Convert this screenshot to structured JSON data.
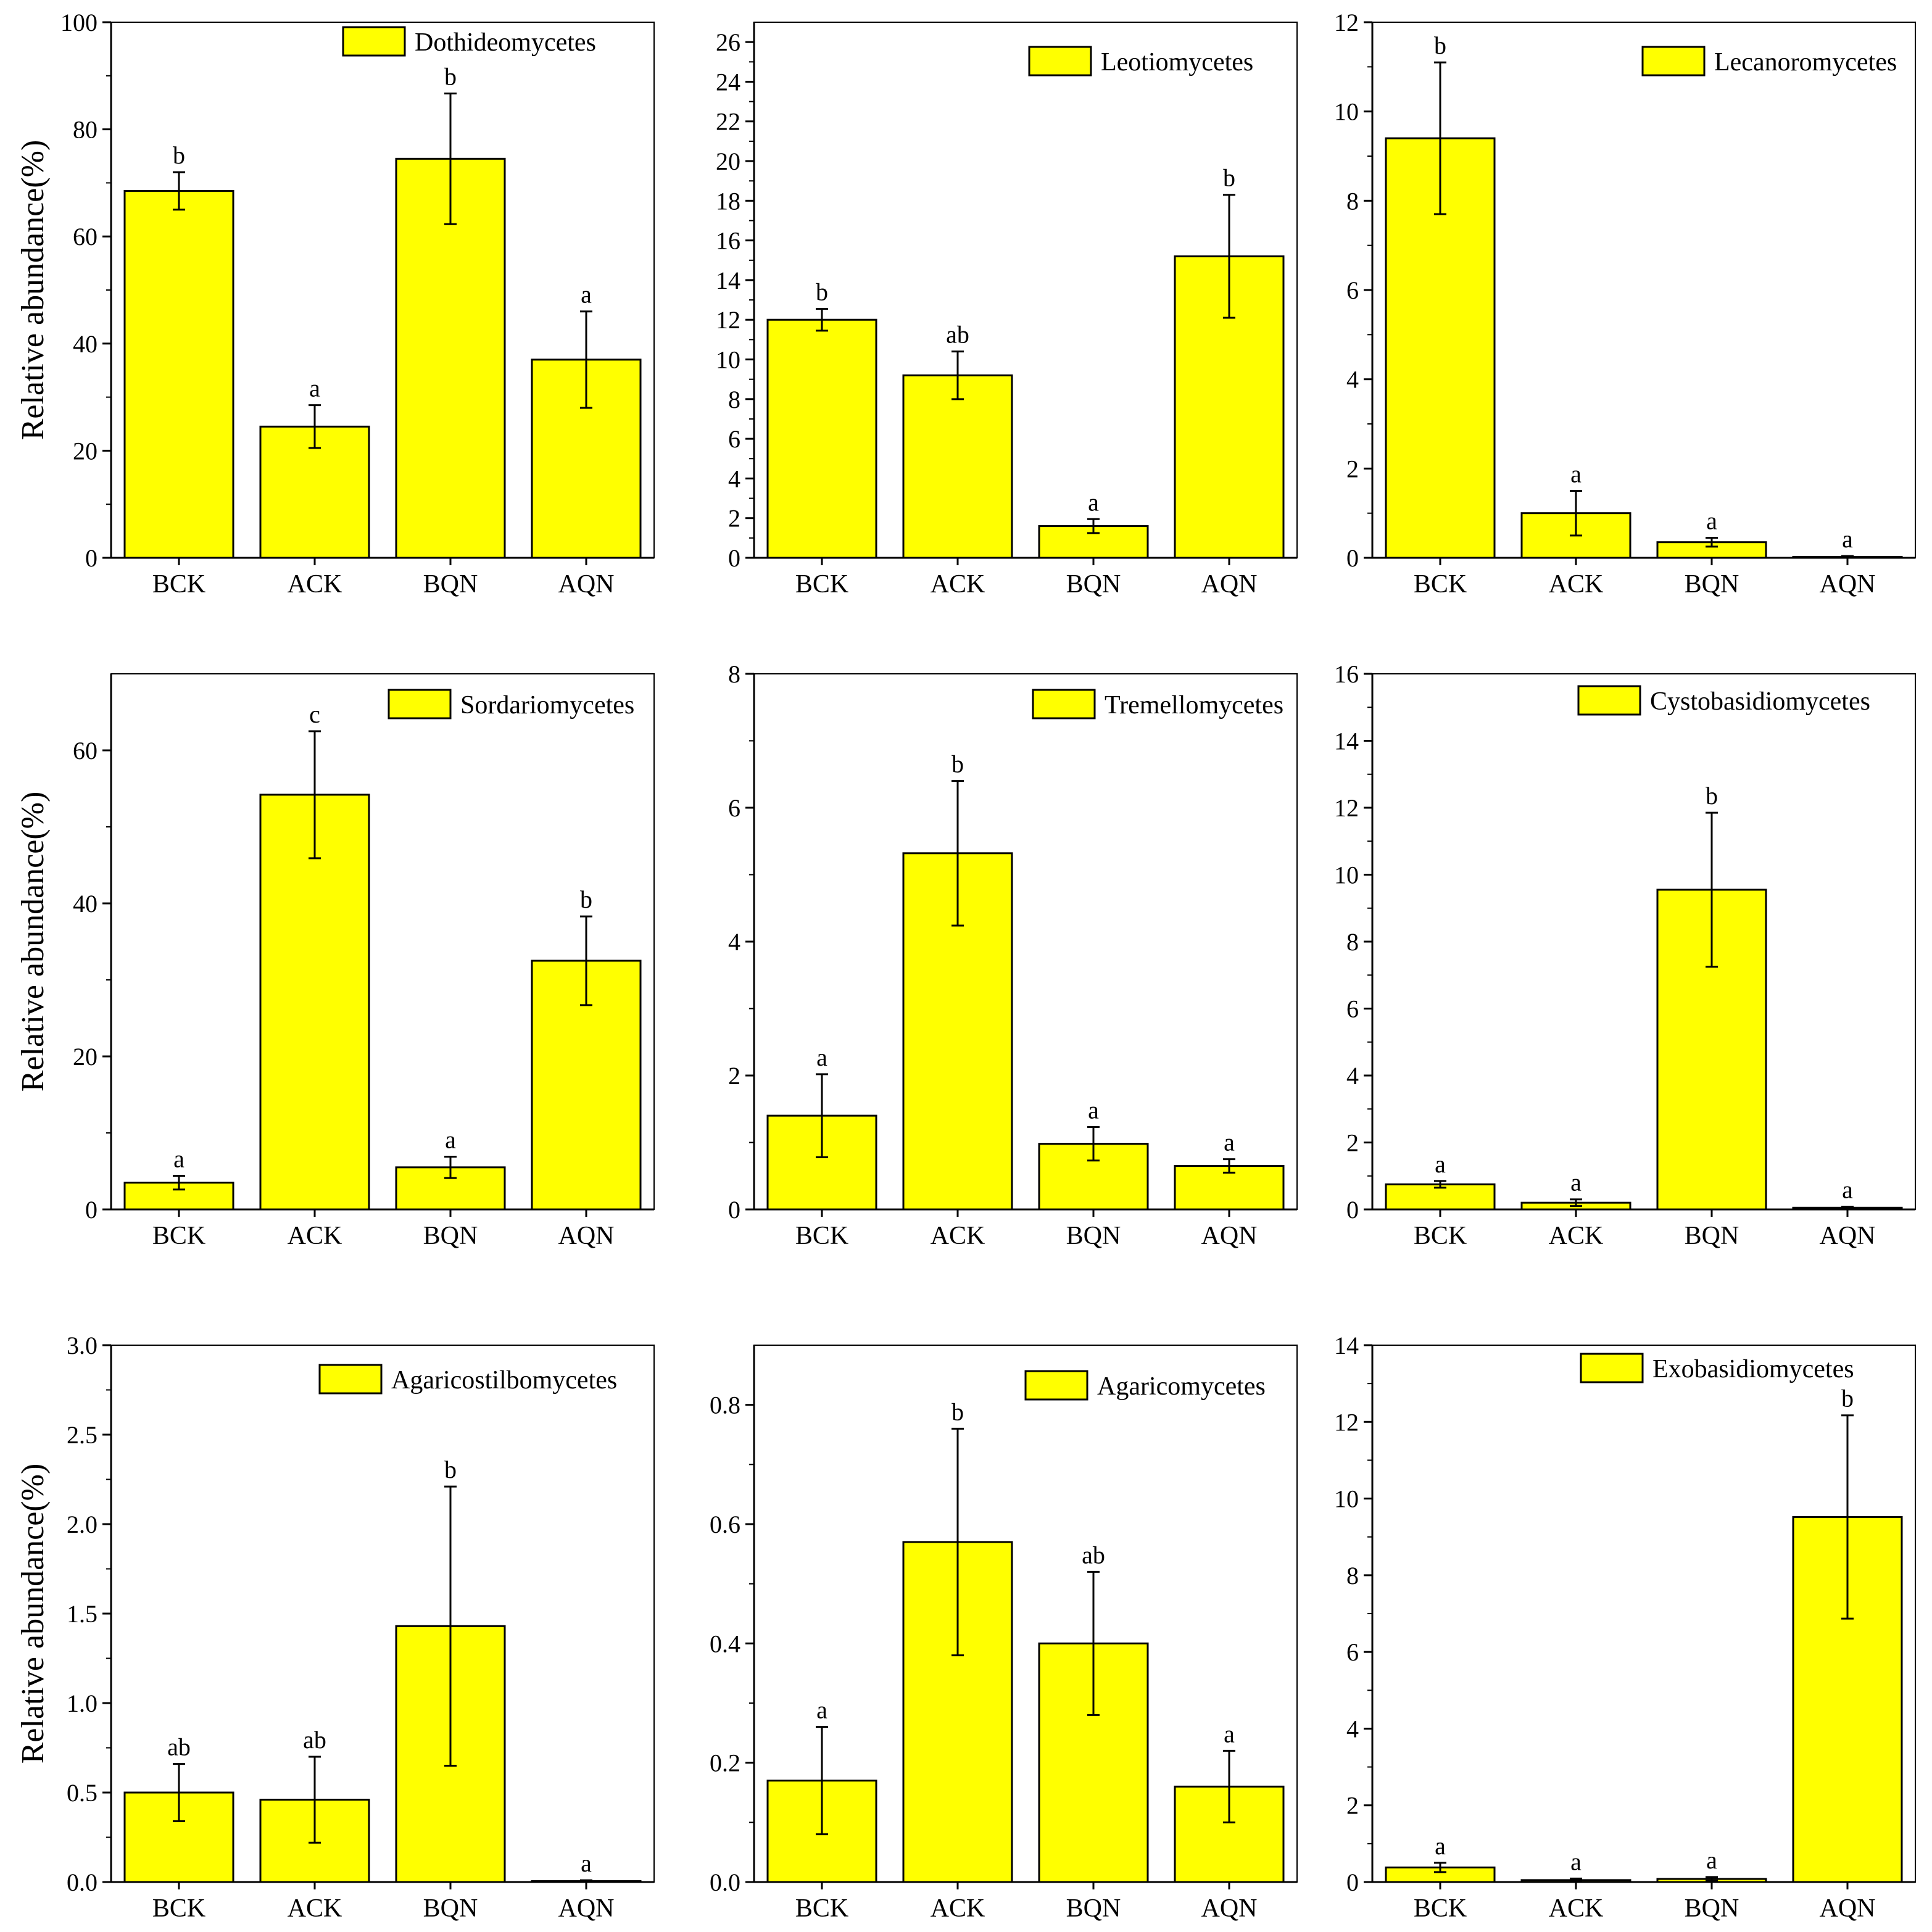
{
  "figure": {
    "ylabel": "Relative abundance(%)",
    "bar_color": "#ffff00"
  },
  "chart_data": [
    {
      "type": "bar",
      "title": "Dothideomycetes",
      "legend": "Dothideomycetes",
      "legend_position": "top-right",
      "categories": [
        "BCK",
        "ACK",
        "BQN",
        "AQN"
      ],
      "values": [
        68.5,
        24.5,
        74.5,
        37
      ],
      "errors": [
        3.5,
        4,
        12.2,
        9
      ],
      "letters": [
        "b",
        "a",
        "b",
        "a"
      ],
      "ylim": [
        0,
        100
      ],
      "yticks": [
        0,
        20,
        40,
        60,
        80,
        100
      ],
      "ytick_labels": [
        "0",
        "20",
        "40",
        "60",
        "80",
        "100"
      ],
      "ylabel": "Relative abundance(%)",
      "xlabel": ""
    },
    {
      "type": "bar",
      "title": "Leotiomycetes",
      "legend": "Leotiomycetes",
      "legend_position": "top-right",
      "categories": [
        "BCK",
        "ACK",
        "BQN",
        "AQN"
      ],
      "values": [
        12,
        9.2,
        1.6,
        15.2
      ],
      "errors": [
        0.55,
        1.2,
        0.35,
        3.1
      ],
      "letters": [
        "b",
        "ab",
        "a",
        "b"
      ],
      "ylim": [
        0,
        27
      ],
      "yticks": [
        0,
        2,
        4,
        6,
        8,
        10,
        12,
        14,
        16,
        18,
        20,
        22,
        24,
        26
      ],
      "ytick_labels": [
        "0",
        "2",
        "4",
        "6",
        "8",
        "10",
        "12",
        "14",
        "16",
        "18",
        "20",
        "22",
        "24",
        "26"
      ],
      "ylabel": "",
      "xlabel": ""
    },
    {
      "type": "bar",
      "title": "Lecanoromycetes",
      "legend": "Lecanoromycetes",
      "legend_position": "top-right",
      "categories": [
        "BCK",
        "ACK",
        "BQN",
        "AQN"
      ],
      "values": [
        9.4,
        1.0,
        0.35,
        0.02
      ],
      "errors": [
        1.7,
        0.5,
        0.1,
        0.02
      ],
      "letters": [
        "b",
        "a",
        "a",
        "a"
      ],
      "ylim": [
        0,
        12
      ],
      "yticks": [
        0,
        2,
        4,
        6,
        8,
        10,
        12
      ],
      "ytick_labels": [
        "0",
        "2",
        "4",
        "6",
        "8",
        "10",
        "12"
      ],
      "ylabel": "",
      "xlabel": ""
    },
    {
      "type": "bar",
      "title": "Sordariomycetes",
      "legend": "Sordariomycetes",
      "legend_position": "top-right",
      "categories": [
        "BCK",
        "ACK",
        "BQN",
        "AQN"
      ],
      "values": [
        3.5,
        54.2,
        5.5,
        32.5
      ],
      "errors": [
        0.9,
        8.3,
        1.4,
        5.8
      ],
      "letters": [
        "a",
        "c",
        "a",
        "b"
      ],
      "ylim": [
        0,
        70
      ],
      "yticks": [
        0,
        20,
        40,
        60
      ],
      "ytick_labels": [
        "0",
        "20",
        "40",
        "60"
      ],
      "ylabel": "Relative abundance(%)",
      "xlabel": ""
    },
    {
      "type": "bar",
      "title": "Tremellomycetes",
      "legend": "Tremellomycetes",
      "legend_position": "top-right",
      "categories": [
        "BCK",
        "ACK",
        "BQN",
        "AQN"
      ],
      "values": [
        1.4,
        5.32,
        0.98,
        0.65
      ],
      "errors": [
        0.62,
        1.08,
        0.25,
        0.1
      ],
      "letters": [
        "a",
        "b",
        "a",
        "a"
      ],
      "ylim": [
        0,
        8
      ],
      "yticks": [
        0,
        2,
        4,
        6,
        8
      ],
      "ytick_labels": [
        "0",
        "2",
        "4",
        "6",
        "8"
      ],
      "ylabel": "",
      "xlabel": ""
    },
    {
      "type": "bar",
      "title": "Cystobasidiomycetes",
      "legend": "Cystobasidiomycetes",
      "legend_position": "top-right",
      "categories": [
        "BCK",
        "ACK",
        "BQN",
        "AQN"
      ],
      "values": [
        0.75,
        0.2,
        9.55,
        0.05
      ],
      "errors": [
        0.1,
        0.1,
        2.3,
        0.03
      ],
      "letters": [
        "a",
        "a",
        "b",
        "a"
      ],
      "ylim": [
        0,
        16
      ],
      "yticks": [
        0,
        2,
        4,
        6,
        8,
        10,
        12,
        14,
        16
      ],
      "ytick_labels": [
        "0",
        "2",
        "4",
        "6",
        "8",
        "10",
        "12",
        "14",
        "16"
      ],
      "ylabel": "",
      "xlabel": ""
    },
    {
      "type": "bar",
      "title": "Agaricostilbomycetes",
      "legend": "Agaricostilbomycetes",
      "legend_position": "top-right",
      "categories": [
        "BCK",
        "ACK",
        "BQN",
        "AQN"
      ],
      "values": [
        0.5,
        0.46,
        1.43,
        0.005
      ],
      "errors": [
        0.16,
        0.24,
        0.78,
        0.005
      ],
      "letters": [
        "ab",
        "ab",
        "b",
        "a"
      ],
      "ylim": [
        0,
        3
      ],
      "yticks": [
        0,
        0.5,
        1,
        1.5,
        2,
        2.5,
        3
      ],
      "ytick_labels": [
        "0.0",
        "0.5",
        "1.0",
        "1.5",
        "2.0",
        "2.5",
        "3.0"
      ],
      "ylabel": "Relative abundance(%)",
      "xlabel": ""
    },
    {
      "type": "bar",
      "title": "Agaricomycetes",
      "legend": "Agaricomycetes",
      "legend_position": "top-right",
      "categories": [
        "BCK",
        "ACK",
        "BQN",
        "AQN"
      ],
      "values": [
        0.17,
        0.57,
        0.4,
        0.16
      ],
      "errors": [
        0.09,
        0.19,
        0.12,
        0.06
      ],
      "letters": [
        "a",
        "b",
        "ab",
        "a"
      ],
      "ylim": [
        0,
        0.9
      ],
      "yticks": [
        0,
        0.2,
        0.4,
        0.6,
        0.8
      ],
      "ytick_labels": [
        "0.0",
        "0.2",
        "0.4",
        "0.6",
        "0.8"
      ],
      "ylabel": "",
      "xlabel": ""
    },
    {
      "type": "bar",
      "title": "Exobasidiomycetes",
      "legend": "Exobasidiomycetes",
      "legend_position": "top-right",
      "categories": [
        "BCK",
        "ACK",
        "BQN",
        "AQN"
      ],
      "values": [
        0.38,
        0.05,
        0.08,
        9.52
      ],
      "errors": [
        0.12,
        0.04,
        0.05,
        2.65
      ],
      "letters": [
        "a",
        "a",
        "a",
        "b"
      ],
      "ylim": [
        0,
        14
      ],
      "yticks": [
        0,
        2,
        4,
        6,
        8,
        10,
        12,
        14
      ],
      "ytick_labels": [
        "0",
        "2",
        "4",
        "6",
        "8",
        "10",
        "12",
        "14"
      ],
      "ylabel": "",
      "xlabel": ""
    }
  ]
}
